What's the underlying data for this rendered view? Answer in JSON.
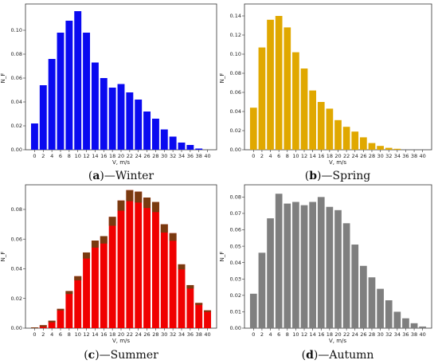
{
  "colors": {
    "winter": "#0a0af0",
    "spring": "#e0a800",
    "summer": "#f00000",
    "summer_overlay": "#7a3a10",
    "autumn": "#7f7f7f",
    "axis": "#333333"
  },
  "chart_data": [
    {
      "type": "bar",
      "panel_letter": "a",
      "panel_name": "—Winter",
      "xlabel": "V, m/s",
      "ylabel": "N_F",
      "ylim": [
        0,
        0.12
      ],
      "yticks": [
        "0.00",
        "0.02",
        "0.04",
        "0.06",
        "0.08",
        "0.10"
      ],
      "yticks_values": [
        0,
        0.02,
        0.04,
        0.06,
        0.08,
        0.1
      ],
      "categories": [
        "0",
        "2",
        "4",
        "6",
        "8",
        "10",
        "12",
        "14",
        "16",
        "18",
        "20",
        "22",
        "24",
        "26",
        "28",
        "30",
        "32",
        "34",
        "36",
        "38",
        "40"
      ],
      "values": [
        0.022,
        0.054,
        0.076,
        0.098,
        0.108,
        0.116,
        0.098,
        0.073,
        0.06,
        0.052,
        0.055,
        0.048,
        0.042,
        0.032,
        0.026,
        0.017,
        0.011,
        0.006,
        0.004,
        0.001,
        0.0
      ]
    },
    {
      "type": "bar",
      "panel_letter": "b",
      "panel_name": "—Spring",
      "xlabel": "V, m/s",
      "ylabel": "N_F",
      "ylim": [
        0,
        0.15
      ],
      "yticks": [
        "0.00",
        "0.02",
        "0.04",
        "0.06",
        "0.08",
        "0.10",
        "0.12",
        "0.14"
      ],
      "yticks_values": [
        0,
        0.02,
        0.04,
        0.06,
        0.08,
        0.1,
        0.12,
        0.14
      ],
      "categories": [
        "0",
        "2",
        "4",
        "6",
        "8",
        "10",
        "12",
        "14",
        "16",
        "18",
        "20",
        "22",
        "24",
        "26",
        "28",
        "30",
        "32",
        "34",
        "36",
        "38",
        "40"
      ],
      "values": [
        0.044,
        0.107,
        0.136,
        0.14,
        0.128,
        0.102,
        0.085,
        0.062,
        0.05,
        0.043,
        0.031,
        0.024,
        0.019,
        0.013,
        0.007,
        0.004,
        0.002,
        0.001,
        0.0,
        0.0,
        0.0
      ]
    },
    {
      "type": "bar",
      "panel_letter": "c",
      "panel_name": "—Summer",
      "xlabel": "V, m/s",
      "ylabel": "N_F",
      "ylim": [
        0,
        0.095
      ],
      "yticks": [
        "0.00",
        "0.02",
        "0.04",
        "0.06",
        "0.08"
      ],
      "yticks_values": [
        0,
        0.02,
        0.04,
        0.06,
        0.08
      ],
      "categories": [
        "0",
        "2",
        "4",
        "6",
        "8",
        "10",
        "12",
        "14",
        "16",
        "18",
        "20",
        "22",
        "24",
        "26",
        "28",
        "30",
        "32",
        "34",
        "36",
        "38",
        "40"
      ],
      "values": [
        0.0005,
        0.002,
        0.005,
        0.013,
        0.025,
        0.035,
        0.051,
        0.059,
        0.062,
        0.075,
        0.086,
        0.093,
        0.092,
        0.088,
        0.085,
        0.07,
        0.064,
        0.043,
        0.029,
        0.017,
        0.012
      ]
    },
    {
      "type": "bar",
      "panel_letter": "d",
      "panel_name": "—Autumn",
      "xlabel": "V, m/s",
      "ylabel": "N_F",
      "ylim": [
        0,
        0.086
      ],
      "yticks": [
        "0.00",
        "0.01",
        "0.02",
        "0.03",
        "0.04",
        "0.05",
        "0.06",
        "0.07",
        "0.08"
      ],
      "yticks_values": [
        0,
        0.01,
        0.02,
        0.03,
        0.04,
        0.05,
        0.06,
        0.07,
        0.08
      ],
      "categories": [
        "0",
        "2",
        "4",
        "6",
        "8",
        "10",
        "12",
        "14",
        "16",
        "18",
        "20",
        "22",
        "24",
        "26",
        "28",
        "30",
        "32",
        "34",
        "36",
        "38",
        "40"
      ],
      "values": [
        0.021,
        0.046,
        0.067,
        0.082,
        0.076,
        0.077,
        0.075,
        0.077,
        0.08,
        0.074,
        0.072,
        0.064,
        0.051,
        0.038,
        0.031,
        0.024,
        0.017,
        0.01,
        0.006,
        0.003,
        0.001
      ]
    }
  ]
}
